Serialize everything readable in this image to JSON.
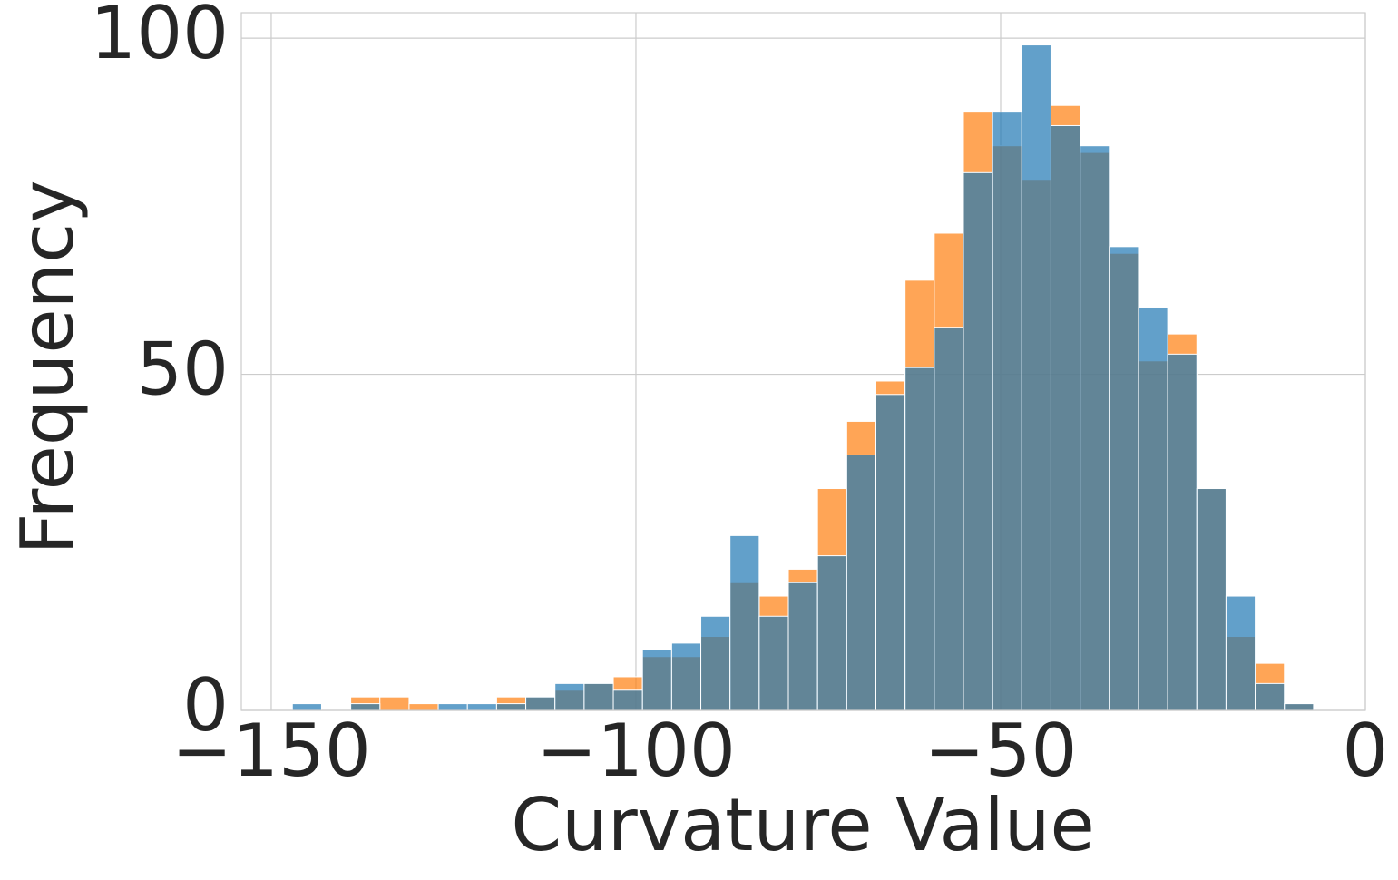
{
  "chart_data": {
    "type": "histogram",
    "xlabel": "Curvature Value",
    "ylabel": "Frequency",
    "bins": [
      -147.1,
      -143.1,
      -139.1,
      -135.1,
      -131.1,
      -127.1,
      -123.1,
      -119.1,
      -115.1,
      -111.1,
      -107.1,
      -103.1,
      -99.1,
      -95.1,
      -91.1,
      -87.1,
      -83.1,
      -79.1,
      -75.1,
      -71.1,
      -67.1,
      -63.1,
      -59.1,
      -55.1,
      -51.1,
      -47.1,
      -43.1,
      -39.1,
      -35.1,
      -31.1,
      -27.1,
      -23.1,
      -19.1,
      -15.1,
      -11.1,
      -7.1
    ],
    "series": [
      {
        "color": "#ff7f0e",
        "values": [
          0,
          0,
          2,
          2,
          1,
          0,
          0,
          2,
          2,
          3,
          4,
          5,
          8,
          8,
          11,
          19,
          17,
          21,
          33,
          43,
          49,
          64,
          71,
          89,
          84,
          79,
          90,
          83,
          68,
          52,
          56,
          33,
          11,
          7,
          1
        ]
      },
      {
        "color": "#1f77b4",
        "values": [
          1,
          0,
          1,
          0,
          0,
          1,
          1,
          1,
          2,
          4,
          4,
          3,
          9,
          10,
          14,
          26,
          14,
          19,
          23,
          38,
          47,
          51,
          57,
          80,
          89,
          99,
          87,
          84,
          69,
          60,
          53,
          33,
          17,
          4,
          1
        ]
      }
    ],
    "opacity": 0.7,
    "xlim": [
      -154.1,
      0
    ],
    "ylim": [
      0,
      103.8
    ],
    "xticks": [
      {
        "value": -150,
        "label": "−150"
      },
      {
        "value": -100,
        "label": "−100"
      },
      {
        "value": -50,
        "label": "−50"
      },
      0
    ],
    "yticks": [
      0,
      50,
      100
    ],
    "grid": true
  }
}
